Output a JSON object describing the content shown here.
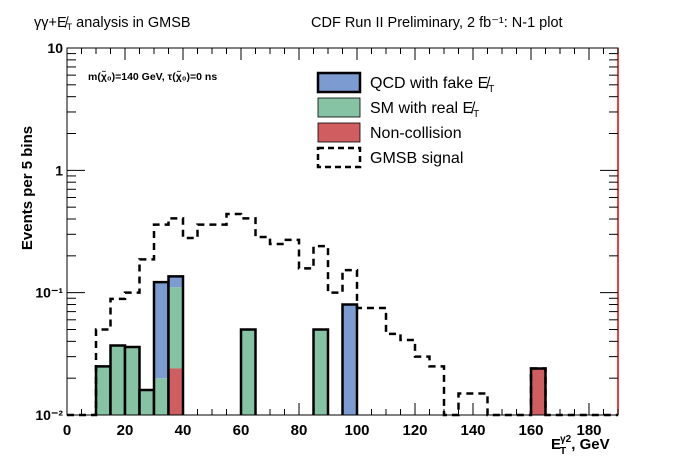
{
  "chart_data": {
    "type": "bar",
    "stacked": true,
    "title_left": "γγ+E̸T analysis in GMSB",
    "title_right": "CDF Run II Preliminary, 2 fb⁻¹: N-1 plot",
    "annotation": "m(χ̃₀)=140 GeV, τ(χ̃₀)=0 ns",
    "xlabel": "E_T^γ2, GeV",
    "ylabel": "Events per 5 bins",
    "xlim": [
      0,
      190
    ],
    "ylim": [
      0.01,
      10
    ],
    "yscale": "log",
    "bin_width": 5,
    "x_ticks": [
      "0",
      "20",
      "40",
      "60",
      "80",
      "100",
      "120",
      "140",
      "160",
      "180"
    ],
    "y_ticks": [
      "10⁻²",
      "10⁻¹",
      "1",
      "10"
    ],
    "legend_position": "top-right",
    "series": [
      {
        "name": "Non-collision",
        "color": "#d05e60",
        "values": [
          0,
          0,
          0,
          0,
          0,
          0,
          0,
          0.024,
          0,
          0,
          0,
          0,
          0,
          0,
          0,
          0,
          0,
          0,
          0,
          0,
          0,
          0,
          0,
          0,
          0,
          0,
          0,
          0,
          0,
          0,
          0,
          0,
          0.024,
          0,
          0,
          0,
          0,
          0
        ]
      },
      {
        "name": "SM with real E̸T",
        "color": "#85c3a4",
        "values": [
          0,
          0,
          0.025,
          0.037,
          0.036,
          0.016,
          0.02,
          0.087,
          0,
          0,
          0,
          0,
          0.05,
          0,
          0,
          0,
          0,
          0.05,
          0,
          0,
          0,
          0,
          0,
          0,
          0,
          0,
          0,
          0,
          0,
          0,
          0,
          0,
          0,
          0,
          0,
          0,
          0,
          0
        ]
      },
      {
        "name": "QCD with fake E̸T",
        "color": "#7b9bd1",
        "values": [
          0,
          0,
          0,
          0,
          0,
          0,
          0.102,
          0.025,
          0,
          0,
          0,
          0,
          0,
          0,
          0,
          0,
          0,
          0,
          0,
          0.08,
          0,
          0,
          0,
          0,
          0,
          0,
          0,
          0,
          0,
          0,
          0,
          0,
          0,
          0,
          0,
          0,
          0,
          0
        ]
      },
      {
        "name": "GMSB signal",
        "style": "dashed-line",
        "values": [
          0,
          0,
          0.05,
          0.089,
          0.1,
          0.187,
          0.36,
          0.405,
          0.28,
          0.36,
          0.36,
          0.44,
          0.405,
          0.285,
          0.25,
          0.27,
          0.158,
          0.24,
          0.1,
          0.153,
          0.075,
          0.075,
          0.046,
          0.041,
          0.03,
          0.025,
          0,
          0.015,
          0.015,
          0,
          0,
          0,
          0.024,
          0,
          0,
          0,
          0,
          0
        ]
      }
    ]
  }
}
